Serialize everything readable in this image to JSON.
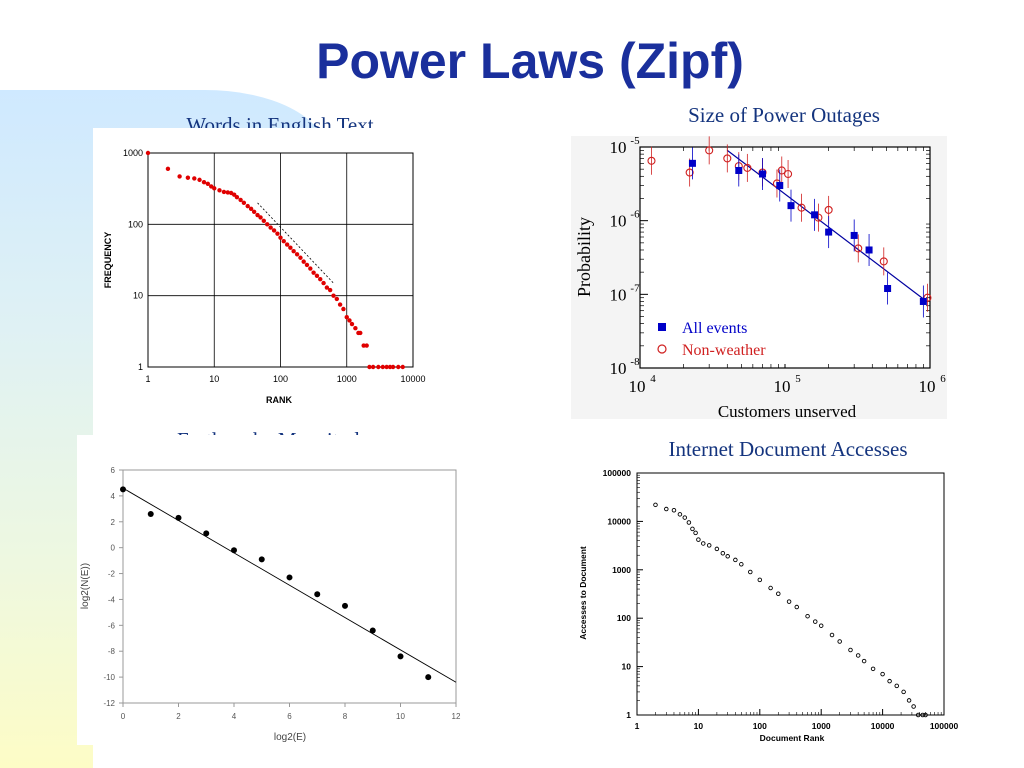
{
  "slide": {
    "title": "Power Laws (Zipf)",
    "colors": {
      "title": "#1a2f9c",
      "panel_title": "#14347e",
      "words_marker": "#e00000",
      "outage_blue": "#0000c8",
      "outage_red": "#d02020"
    }
  },
  "chart_data": [
    {
      "id": "words",
      "type": "scatter",
      "title": "Words in English Text",
      "xlabel": "RANK",
      "ylabel": "FREQUENCY",
      "xscale": "log",
      "yscale": "log",
      "xlim": [
        1,
        10000
      ],
      "ylim": [
        1,
        1000
      ],
      "xticks": [
        "1",
        "10",
        "100",
        "1000",
        "10000"
      ],
      "yticks": [
        "1",
        "10",
        "100",
        "1000"
      ],
      "grid": true,
      "marker_color": "#e00000",
      "series": [
        {
          "points": [
            [
              1,
              1000
            ],
            [
              2,
              600
            ],
            [
              3,
              470
            ],
            [
              4,
              450
            ],
            [
              5,
              440
            ],
            [
              6,
              420
            ],
            [
              7,
              390
            ],
            [
              8,
              370
            ],
            [
              9,
              340
            ],
            [
              10,
              320
            ],
            [
              12,
              300
            ],
            [
              14,
              285
            ],
            [
              16,
              280
            ],
            [
              18,
              275
            ],
            [
              20,
              260
            ],
            [
              22,
              240
            ],
            [
              25,
              220
            ],
            [
              28,
              200
            ],
            [
              32,
              180
            ],
            [
              36,
              165
            ],
            [
              40,
              150
            ],
            [
              45,
              135
            ],
            [
              50,
              125
            ],
            [
              56,
              112
            ],
            [
              63,
              100
            ],
            [
              71,
              90
            ],
            [
              80,
              82
            ],
            [
              90,
              74
            ],
            [
              100,
              65
            ],
            [
              112,
              58
            ],
            [
              126,
              52
            ],
            [
              141,
              47
            ],
            [
              158,
              42
            ],
            [
              178,
              38
            ],
            [
              200,
              34
            ],
            [
              224,
              30
            ],
            [
              251,
              27
            ],
            [
              282,
              24
            ],
            [
              316,
              21
            ],
            [
              355,
              19
            ],
            [
              398,
              17
            ],
            [
              447,
              15
            ],
            [
              501,
              13
            ],
            [
              562,
              12
            ],
            [
              631,
              10
            ],
            [
              708,
              9
            ],
            [
              794,
              7.5
            ],
            [
              891,
              6.5
            ],
            [
              1000,
              5
            ],
            [
              1100,
              4.5
            ],
            [
              1200,
              4
            ],
            [
              1350,
              3.5
            ],
            [
              1500,
              3
            ],
            [
              1600,
              3
            ],
            [
              1800,
              2
            ],
            [
              2000,
              2
            ],
            [
              2200,
              1
            ],
            [
              2500,
              1
            ],
            [
              3000,
              1
            ],
            [
              3500,
              1
            ],
            [
              4000,
              1
            ],
            [
              4500,
              1
            ],
            [
              5000,
              1
            ],
            [
              6000,
              1
            ],
            [
              7000,
              1
            ]
          ]
        }
      ],
      "reference_line": [
        [
          45,
          200
        ],
        [
          630,
          15
        ]
      ]
    },
    {
      "id": "outages",
      "type": "scatter",
      "title": "Size of Power Outages",
      "xlabel": "Customers unserved",
      "ylabel": "Probability",
      "xscale": "log",
      "yscale": "log",
      "xlim": [
        10000,
        1000000
      ],
      "ylim": [
        1e-08,
        1e-05
      ],
      "xtick_base": "10",
      "xtick_exp": [
        "4",
        "5",
        "6"
      ],
      "ytick_base": "10",
      "ytick_exp": [
        "-5",
        "-6",
        "-7",
        "-8"
      ],
      "legend": {
        "placement": "bottom-left",
        "entries": [
          "All events",
          "Non-weather"
        ]
      },
      "series": [
        {
          "name": "All events",
          "marker": "square",
          "color": "#0000c8",
          "points": [
            [
              23000,
              6e-06
            ],
            [
              48000,
              4.8e-06
            ],
            [
              70000,
              4.3e-06
            ],
            [
              92000,
              3e-06
            ],
            [
              110000,
              1.6e-06
            ],
            [
              160000,
              1.2e-06
            ],
            [
              200000,
              7e-07
            ],
            [
              300000,
              6.3e-07
            ],
            [
              380000,
              4e-07
            ],
            [
              510000,
              1.2e-07
            ],
            [
              900000,
              8e-08
            ]
          ]
        },
        {
          "name": "Non-weather",
          "marker": "circle",
          "color": "#d02020",
          "points": [
            [
              12000,
              6.5e-06
            ],
            [
              22000,
              4.5e-06
            ],
            [
              30000,
              9e-06
            ],
            [
              40000,
              7e-06
            ],
            [
              48000,
              5.5e-06
            ],
            [
              55000,
              5.2e-06
            ],
            [
              70000,
              4.5e-06
            ],
            [
              88000,
              3.2e-06
            ],
            [
              95000,
              4.8e-06
            ],
            [
              105000,
              4.3e-06
            ],
            [
              130000,
              1.5e-06
            ],
            [
              170000,
              1.1e-06
            ],
            [
              200000,
              1.4e-06
            ],
            [
              320000,
              4.2e-07
            ],
            [
              480000,
              2.8e-07
            ],
            [
              960000,
              9e-08
            ]
          ]
        }
      ],
      "fit_line": [
        [
          40000,
          9e-06
        ],
        [
          950000,
          8e-08
        ]
      ]
    },
    {
      "id": "earthquakes",
      "type": "scatter",
      "title": "Earthquake Magnitudes",
      "xlabel": "log2(E)",
      "ylabel": "log2(N(E))",
      "xlim": [
        0,
        12
      ],
      "ylim": [
        -12,
        6
      ],
      "xticks": [
        "0",
        "2",
        "4",
        "6",
        "8",
        "10",
        "12"
      ],
      "yticks": [
        "6",
        "4",
        "2",
        "0",
        "-2",
        "-4",
        "-6",
        "-8",
        "-10",
        "-12"
      ],
      "series": [
        {
          "points": [
            [
              0,
              4.5
            ],
            [
              1,
              2.6
            ],
            [
              2,
              2.3
            ],
            [
              3,
              1.1
            ],
            [
              4,
              -0.2
            ],
            [
              5,
              -0.9
            ],
            [
              6,
              -2.3
            ],
            [
              7,
              -3.6
            ],
            [
              8,
              -4.5
            ],
            [
              9,
              -6.4
            ],
            [
              10,
              -8.4
            ],
            [
              11,
              -10
            ]
          ]
        }
      ],
      "fit_line": [
        [
          0,
          4.6
        ],
        [
          12,
          -10.4
        ]
      ]
    },
    {
      "id": "internet",
      "type": "scatter",
      "title": "Internet Document Accesses",
      "xlabel": "Document Rank",
      "ylabel": "Accesses to Document",
      "xscale": "log",
      "yscale": "log",
      "xlim": [
        1,
        100000
      ],
      "ylim": [
        1,
        100000
      ],
      "xticks": [
        "1",
        "10",
        "100",
        "1000",
        "10000",
        "100000"
      ],
      "yticks": [
        "1",
        "10",
        "100",
        "1000",
        "10000",
        "100000"
      ],
      "series": [
        {
          "points": [
            [
              2,
              22000
            ],
            [
              3,
              18000
            ],
            [
              4,
              17000
            ],
            [
              5,
              14000
            ],
            [
              6,
              12000
            ],
            [
              7,
              9500
            ],
            [
              8,
              7000
            ],
            [
              9,
              5800
            ],
            [
              10,
              4200
            ],
            [
              12,
              3500
            ],
            [
              15,
              3200
            ],
            [
              20,
              2700
            ],
            [
              25,
              2200
            ],
            [
              30,
              1900
            ],
            [
              40,
              1600
            ],
            [
              50,
              1300
            ],
            [
              70,
              900
            ],
            [
              100,
              620
            ],
            [
              150,
              420
            ],
            [
              200,
              320
            ],
            [
              300,
              220
            ],
            [
              400,
              170
            ],
            [
              600,
              110
            ],
            [
              800,
              85
            ],
            [
              1000,
              70
            ],
            [
              1500,
              45
            ],
            [
              2000,
              33
            ],
            [
              3000,
              22
            ],
            [
              4000,
              17
            ],
            [
              5000,
              13
            ],
            [
              7000,
              9
            ],
            [
              10000,
              7
            ],
            [
              13000,
              5
            ],
            [
              17000,
              4
            ],
            [
              22000,
              3
            ],
            [
              27000,
              2
            ],
            [
              32000,
              1.5
            ],
            [
              38000,
              1
            ],
            [
              45000,
              1
            ],
            [
              50000,
              1
            ]
          ]
        }
      ]
    }
  ]
}
